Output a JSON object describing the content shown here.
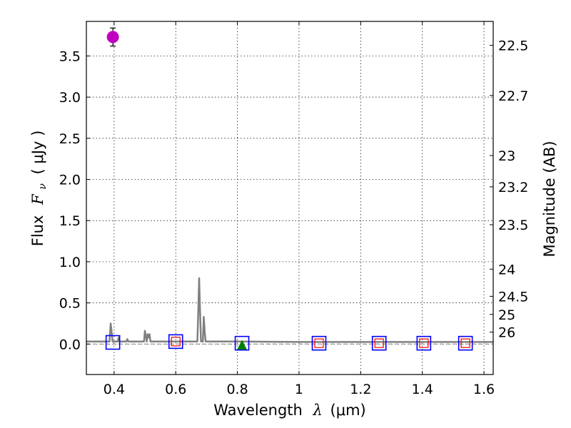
{
  "chart_data": {
    "type": "scatter",
    "title": "",
    "xlabel": "Wavelength λ (μm)",
    "xlabel_text": "Wavelength",
    "xlabel_symbol": "λ",
    "xlabel_unit": "(μm)",
    "ylabel": "Flux F_ν (μJy)",
    "ylabel_text": "Flux",
    "ylabel_symbol": "F",
    "ylabel_subscript": "ν",
    "ylabel_unit": "( μJy )",
    "y2label": "Magnitude (AB)",
    "xlim": [
      0.31,
      1.63
    ],
    "ylim": [
      -0.37,
      3.92
    ],
    "grid": true,
    "x_ticks": [
      0.4,
      0.6,
      0.8,
      1,
      1.2,
      1.4,
      1.6
    ],
    "x_tick_labels": [
      "0.4",
      "0.6",
      "0.8",
      "1",
      "1.2",
      "1.4",
      "1.6"
    ],
    "y_ticks": [
      0.0,
      0.5,
      1.0,
      1.5,
      2.0,
      2.5,
      3.0,
      3.5
    ],
    "y_tick_labels": [
      "0.0",
      "0.5",
      "1.0",
      "1.5",
      "2.0",
      "2.5",
      "3.0",
      "3.5"
    ],
    "y2_ticks": [
      {
        "label": "22.5",
        "flux": 3.63
      },
      {
        "label": "22.7",
        "flux": 3.02
      },
      {
        "label": "23",
        "flux": 2.29
      },
      {
        "label": "23.2",
        "flux": 1.91
      },
      {
        "label": "23.5",
        "flux": 1.45
      },
      {
        "label": "24",
        "flux": 0.91
      },
      {
        "label": "24.5",
        "flux": 0.58
      },
      {
        "label": "25",
        "flux": 0.36
      },
      {
        "label": "26",
        "flux": 0.145
      }
    ],
    "series": [
      {
        "name": "model spectrum",
        "kind": "line",
        "color": "#808080",
        "x": [
          0.31,
          0.385,
          0.389,
          0.392,
          0.395,
          0.4,
          0.412,
          0.415,
          0.418,
          0.43,
          0.44,
          0.443,
          0.446,
          0.46,
          0.497,
          0.5,
          0.503,
          0.506,
          0.509,
          0.512,
          0.515,
          0.518,
          0.52,
          0.6,
          0.67,
          0.673,
          0.676,
          0.679,
          0.682,
          0.688,
          0.691,
          0.694,
          0.697,
          0.7,
          0.8,
          1.0,
          1.2,
          1.4,
          1.63
        ],
        "y": [
          0.03,
          0.03,
          0.25,
          0.15,
          0.03,
          0.03,
          0.03,
          0.08,
          0.03,
          0.03,
          0.03,
          0.06,
          0.03,
          0.03,
          0.03,
          0.16,
          0.1,
          0.03,
          0.12,
          0.08,
          0.12,
          0.03,
          0.03,
          0.03,
          0.03,
          0.4,
          0.8,
          0.4,
          0.03,
          0.03,
          0.33,
          0.15,
          0.03,
          0.03,
          0.03,
          0.025,
          0.025,
          0.025,
          0.025
        ]
      },
      {
        "name": "measured flux",
        "kind": "point",
        "marker": "circle",
        "color": "#bf00bf",
        "x": [
          0.396
        ],
        "y": [
          3.73
        ],
        "yerr": [
          0.11
        ]
      },
      {
        "name": "model photometry",
        "kind": "point",
        "marker": "square",
        "color": "#0000ff",
        "x": [
          0.396,
          0.6,
          0.815,
          1.065,
          1.26,
          1.405,
          1.54
        ],
        "y": [
          0.02,
          0.03,
          0.01,
          0.01,
          0.01,
          0.01,
          0.01
        ]
      },
      {
        "name": "upper limits",
        "kind": "point",
        "marker": "square",
        "color": "#ff0000",
        "x": [
          0.6,
          1.065,
          1.26,
          1.405,
          1.54
        ],
        "y": [
          0.03,
          0.01,
          0.01,
          0.01,
          0.01
        ]
      },
      {
        "name": "detection",
        "kind": "point",
        "marker": "triangle",
        "color": "#008000",
        "x": [
          0.815
        ],
        "y": [
          -0.01
        ]
      }
    ],
    "zero_line": {
      "y": 0.0,
      "color": "#808080",
      "style": "dashed"
    }
  }
}
